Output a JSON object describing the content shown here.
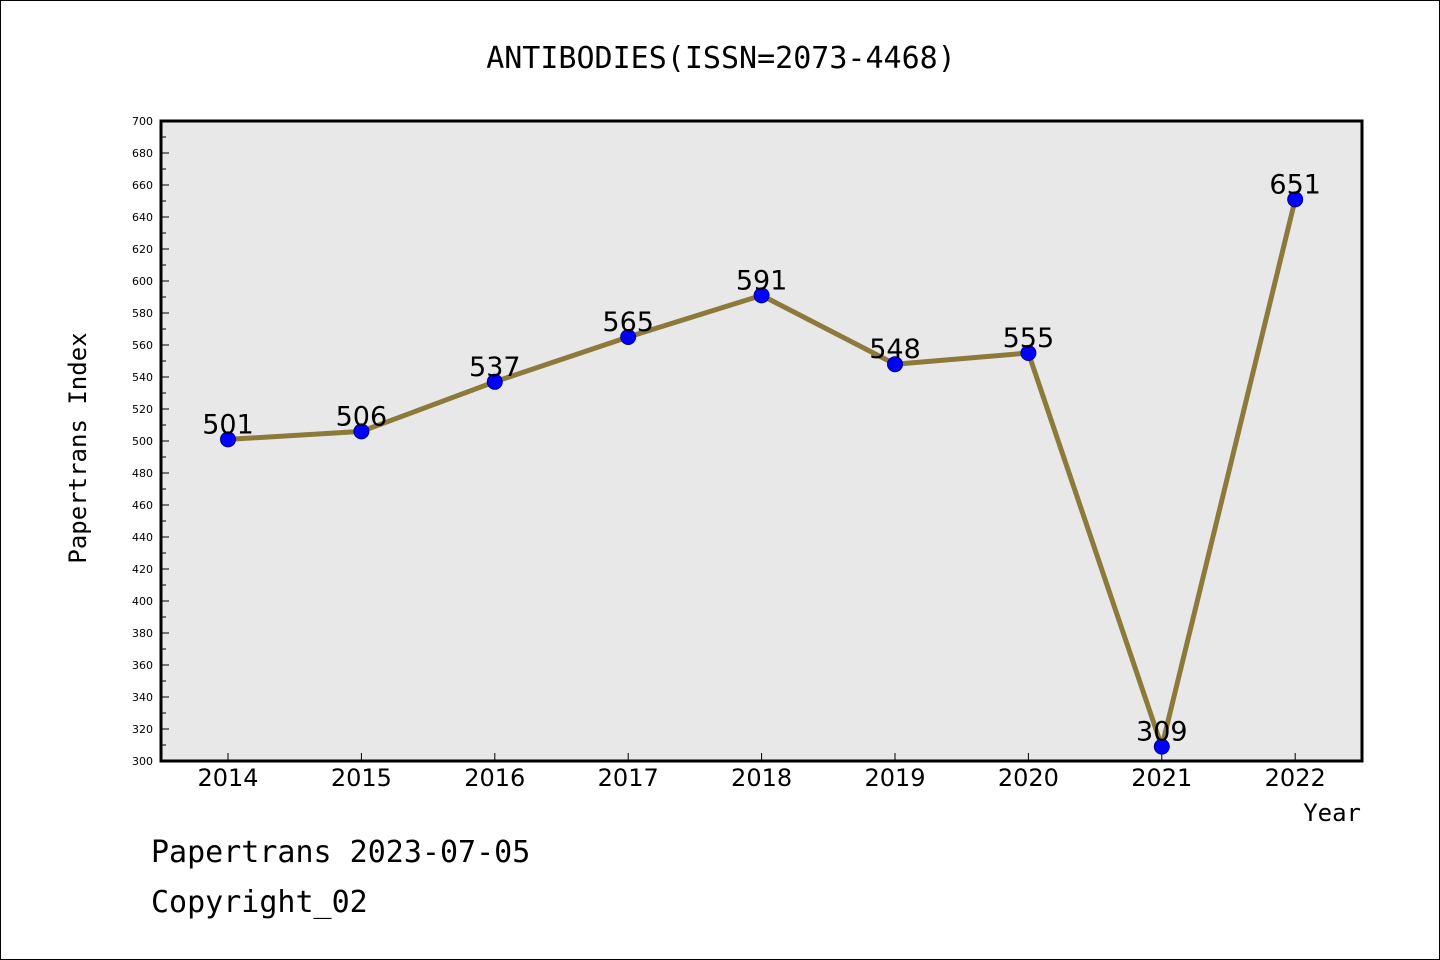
{
  "chart_data": {
    "type": "line",
    "title": "ANTIBODIES(ISSN=2073-4468)",
    "xlabel": "Year",
    "ylabel": "Papertrans Index",
    "categories": [
      "2014",
      "2015",
      "2016",
      "2017",
      "2018",
      "2019",
      "2020",
      "2021",
      "2022"
    ],
    "series": [
      {
        "values": [
          501,
          506,
          537,
          565,
          591,
          548,
          555,
          309,
          651
        ],
        "data_labels": [
          "501",
          "506",
          "537",
          "565",
          "591",
          "548",
          "555",
          "309",
          "651"
        ]
      }
    ],
    "ylim": [
      300,
      700
    ],
    "yticks": [
      "300",
      "320",
      "340",
      "360",
      "380",
      "400",
      "420",
      "440",
      "460",
      "480",
      "500",
      "520",
      "540",
      "560",
      "580",
      "600",
      "620",
      "640",
      "660",
      "680",
      "700"
    ],
    "grid": false,
    "legend": "none",
    "colors": {
      "line": "#8c7a3a",
      "marker": "#0000ff",
      "plot_background": "#e8e8e8",
      "axes": "#000000"
    }
  },
  "footer": {
    "date_line": "Papertrans 2023-07-05",
    "copyright_line": "Copyright_02"
  }
}
